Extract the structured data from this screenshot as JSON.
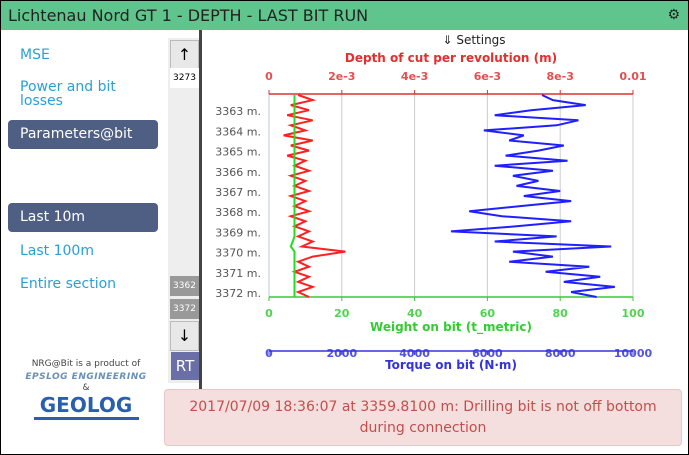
{
  "title": "Lichtenau Nord GT 1 - DEPTH - LAST BIT RUN",
  "sidebar": {
    "items": [
      {
        "label": "MSE",
        "active": false
      },
      {
        "label": "Power and bit losses",
        "active": false
      },
      {
        "label": "Parameters@bit",
        "active": true
      },
      {
        "label": "Last 10m",
        "active": true
      },
      {
        "label": "Last 100m",
        "active": false
      },
      {
        "label": "Entire section",
        "active": false
      }
    ]
  },
  "scroll": {
    "up": "↑",
    "down": "↓",
    "top_depth": "3273",
    "range_start": "3362",
    "range_end": "3372",
    "rt": "RT"
  },
  "credit": {
    "text": "NRG@Bit is a product of",
    "amp": "&",
    "logo1": "EPSLOG ENGINEERING",
    "logo2": "GEOLOG"
  },
  "settings_label": "⇓ Settings",
  "alert": "2017/07/09 18:36:07 at 3359.8100 m: Drilling bit is not off bottom during connection",
  "chart_data": {
    "type": "line",
    "y_axis": {
      "ticks": [
        "3363 m.",
        "3364 m.",
        "3365 m.",
        "3366 m.",
        "3367 m.",
        "3368 m.",
        "3369 m.",
        "3370 m.",
        "3371 m.",
        "3372 m."
      ],
      "range": [
        3362.15,
        3372.2
      ],
      "inverted": true
    },
    "axes": [
      {
        "label": "Depth of cut per revolution (m)",
        "ticks": [
          "0",
          "2e-3",
          "4e-3",
          "6e-3",
          "8e-3",
          "0.01"
        ],
        "range": [
          0,
          0.01
        ],
        "color": "#e03030",
        "position": "top"
      },
      {
        "label": "Weight on bit (t_metric)",
        "ticks": [
          "0",
          "20",
          "40",
          "60",
          "80",
          "100"
        ],
        "range": [
          0,
          100
        ],
        "color": "#33cc33",
        "position": "bottom"
      },
      {
        "label": "Torque on bit (N·m)",
        "ticks": [
          "0",
          "2000",
          "4000",
          "6000",
          "8000",
          "10000"
        ],
        "range": [
          0,
          10000
        ],
        "color": "#3333dd",
        "position": "bottom"
      }
    ],
    "depth": [
      3362.2,
      3362.45,
      3362.7,
      3362.95,
      3363.2,
      3363.45,
      3363.7,
      3363.95,
      3364.2,
      3364.45,
      3364.7,
      3364.95,
      3365.2,
      3365.45,
      3365.7,
      3365.95,
      3366.2,
      3366.45,
      3366.7,
      3366.95,
      3367.2,
      3367.45,
      3367.7,
      3367.95,
      3368.2,
      3368.45,
      3368.7,
      3368.95,
      3369.2,
      3369.45,
      3369.7,
      3369.95,
      3370.2,
      3370.45,
      3370.7,
      3370.95,
      3371.2,
      3371.45,
      3371.7,
      3371.95,
      3372.2
    ],
    "series": [
      {
        "axis": 0,
        "color": "#ff2020",
        "values": [
          0.0008,
          0.0012,
          0.0006,
          0.0011,
          0.0005,
          0.0012,
          0.0006,
          0.001,
          0.0004,
          0.0012,
          0.0006,
          0.0011,
          0.0005,
          0.001,
          0.0007,
          0.0011,
          0.0006,
          0.001,
          0.0007,
          0.0011,
          0.0006,
          0.001,
          0.0007,
          0.0011,
          0.0006,
          0.001,
          0.0007,
          0.0011,
          0.0008,
          0.0012,
          0.0009,
          0.0021,
          0.0012,
          0.0008,
          0.0011,
          0.0007,
          0.0011,
          0.0008,
          0.0012,
          0.0008,
          0.0011
        ]
      },
      {
        "axis": 1,
        "color": "#22dd22",
        "values": [
          7,
          7,
          7,
          7,
          7,
          7,
          7,
          7,
          7,
          7,
          7,
          7,
          7,
          7,
          7,
          7,
          7,
          7,
          7,
          7,
          7,
          7,
          7,
          7,
          7,
          7,
          7,
          7,
          7,
          6.5,
          6,
          7,
          7,
          7,
          7,
          7,
          7,
          7,
          7,
          7,
          7
        ]
      },
      {
        "axis": 2,
        "color": "#2020ff",
        "values": [
          7500,
          7800,
          8700,
          7200,
          6200,
          8500,
          7900,
          5900,
          7000,
          6600,
          8100,
          7400,
          6500,
          8200,
          6200,
          7800,
          6700,
          7400,
          6800,
          8000,
          7000,
          8300,
          6900,
          5500,
          6400,
          8300,
          6800,
          5000,
          7900,
          6200,
          9400,
          6700,
          7800,
          6600,
          8800,
          7600,
          9100,
          8100,
          9500,
          8300,
          9000
        ]
      }
    ]
  }
}
